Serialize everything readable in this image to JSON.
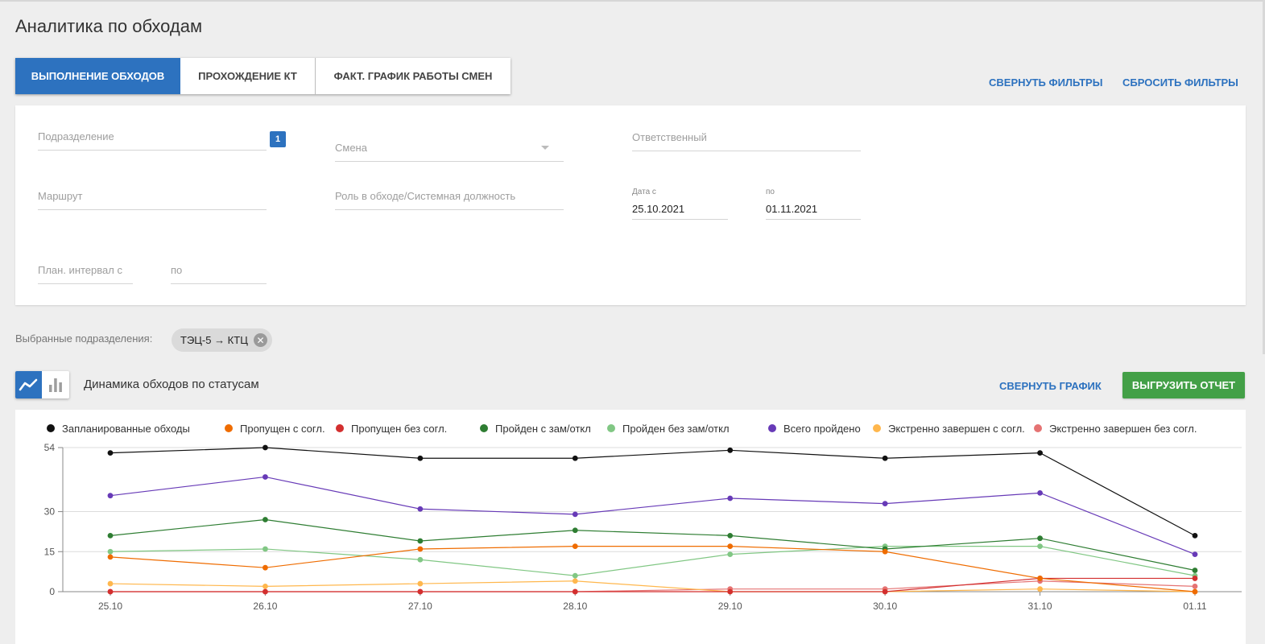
{
  "page": {
    "title": "Аналитика по обходам"
  },
  "tabs": [
    {
      "label": "Выполнение обходов",
      "active": true
    },
    {
      "label": "Прохождение КТ",
      "active": false
    },
    {
      "label": "Факт. график работы смен",
      "active": false
    }
  ],
  "filter_actions": {
    "collapse": "Свернуть фильтры",
    "reset": "Сбросить фильтры"
  },
  "filters": {
    "subdivision": {
      "placeholder": "Подразделение",
      "badge": "1"
    },
    "shift": {
      "placeholder": "Смена"
    },
    "responsible": {
      "placeholder": "Ответственный"
    },
    "route": {
      "placeholder": "Маршрут"
    },
    "role": {
      "placeholder": "Роль в обходе/Системная должность"
    },
    "date_from": {
      "label": "Дата с",
      "value": "25.10.2021"
    },
    "date_to": {
      "label": "по",
      "value": "01.11.2021"
    },
    "plan_from": {
      "placeholder": "План. интервал с"
    },
    "plan_to": {
      "placeholder": "по"
    }
  },
  "selected": {
    "label": "Выбранные подразделения:",
    "chip": "ТЭЦ-5 → КТЦ"
  },
  "chart_section": {
    "title": "Динамика обходов по статусам",
    "collapse": "Свернуть график",
    "export": "Выгрузить отчет",
    "toggle_icons": [
      "line-chart-icon",
      "bar-chart-icon"
    ]
  },
  "chart_data": {
    "type": "line",
    "categories": [
      "25.10",
      "26.10",
      "27.10",
      "28.10",
      "29.10",
      "30.10",
      "31.10",
      "01.11"
    ],
    "y_ticks": [
      0,
      15,
      30,
      54
    ],
    "ylim": [
      0,
      54
    ],
    "grid": true,
    "legend_position": "top",
    "series": [
      {
        "name": "Запланированные обходы",
        "color": "#111111",
        "values": [
          52,
          54,
          50,
          50,
          53,
          50,
          52,
          21
        ]
      },
      {
        "name": "Пропущен с согл.",
        "color": "#ef6c00",
        "values": [
          13,
          9,
          16,
          17,
          17,
          15,
          5,
          0
        ]
      },
      {
        "name": "Пропущен без согл.",
        "color": "#d32f2f",
        "values": [
          0,
          0,
          0,
          0,
          0,
          0,
          5,
          5
        ]
      },
      {
        "name": "Пройден с зам/откл",
        "color": "#2e7d32",
        "values": [
          21,
          27,
          19,
          23,
          21,
          16,
          20,
          8
        ]
      },
      {
        "name": "Пройден без зам/откл",
        "color": "#81c784",
        "values": [
          15,
          16,
          12,
          6,
          14,
          17,
          17,
          6
        ]
      },
      {
        "name": "Всего пройдено",
        "color": "#673ab7",
        "values": [
          36,
          43,
          31,
          29,
          35,
          33,
          37,
          14
        ]
      },
      {
        "name": "Экстренно завершен с согл.",
        "color": "#ffb74d",
        "values": [
          3,
          2,
          3,
          4,
          0,
          0,
          1,
          0
        ]
      },
      {
        "name": "Экстренно завершен без согл.",
        "color": "#e57373",
        "values": [
          0,
          0,
          0,
          0,
          1,
          1,
          4,
          2
        ]
      }
    ]
  }
}
